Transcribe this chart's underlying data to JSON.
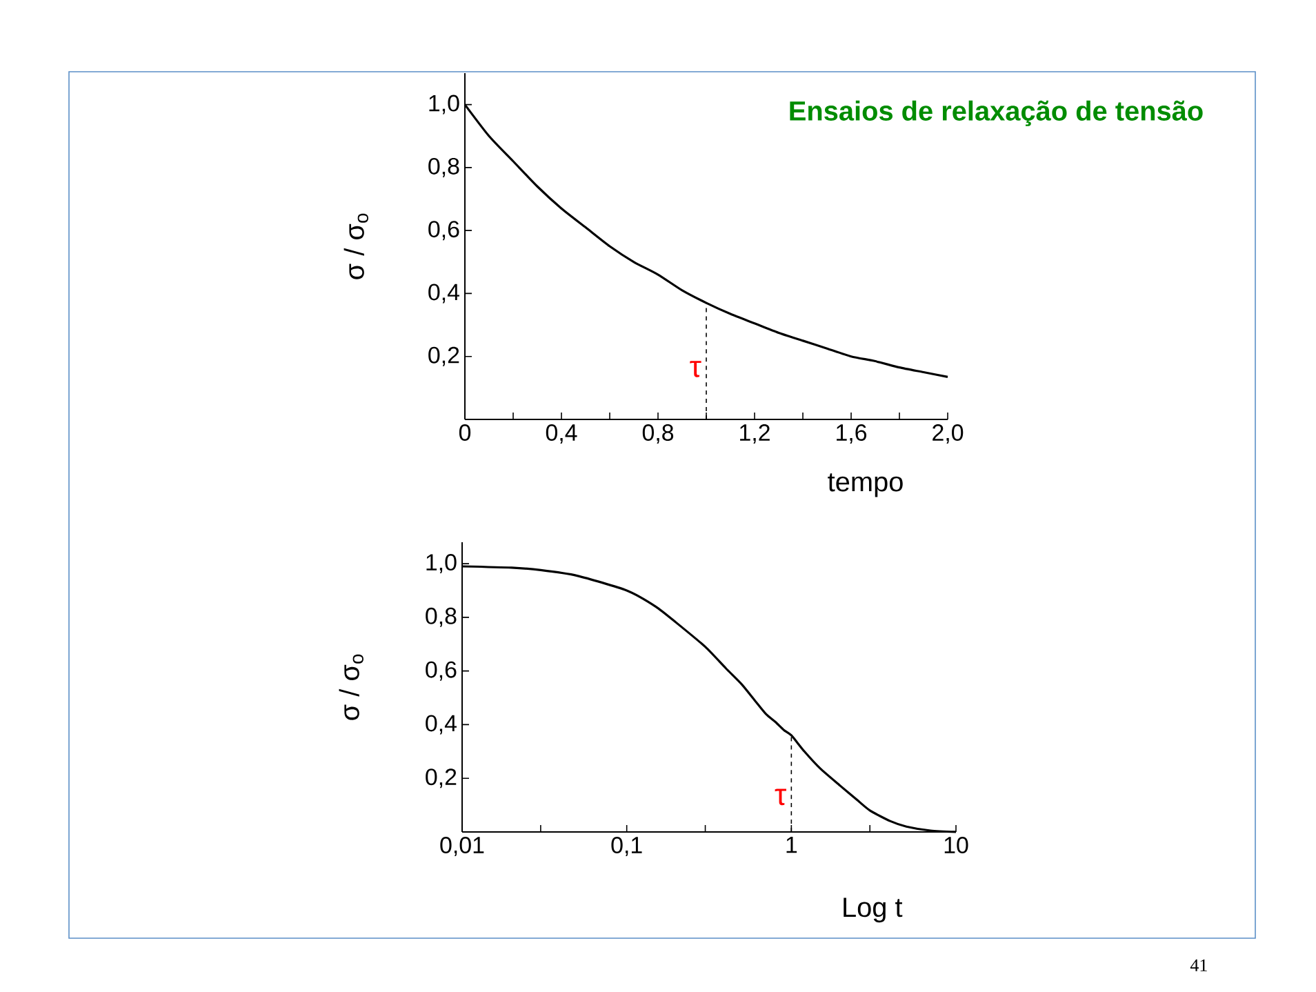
{
  "chart_data": [
    {
      "type": "line",
      "title": "Ensaios de relaxação de tensão",
      "xlabel": "tempo",
      "ylabel": "σ / σ$_{o}$",
      "xlim": [
        0,
        2.0
      ],
      "ylim": [
        0,
        1.1
      ],
      "xticks": [
        {
          "value": 0,
          "label": "0"
        },
        {
          "value": 0.2,
          "label": null
        },
        {
          "value": 0.4,
          "label": "0,4"
        },
        {
          "value": 0.6,
          "label": null
        },
        {
          "value": 0.8,
          "label": "0,8"
        },
        {
          "value": 1.0,
          "label": null
        },
        {
          "value": 1.2,
          "label": "1,2"
        },
        {
          "value": 1.4,
          "label": null
        },
        {
          "value": 1.6,
          "label": "1,6"
        },
        {
          "value": 1.8,
          "label": null
        },
        {
          "value": 2.0,
          "label": "2,0"
        }
      ],
      "yticks": [
        {
          "value": 0.2,
          "label": "0,2"
        },
        {
          "value": 0.4,
          "label": "0,4"
        },
        {
          "value": 0.6,
          "label": "0,6"
        },
        {
          "value": 0.8,
          "label": "0,8"
        },
        {
          "value": 1.0,
          "label": "1,0"
        }
      ],
      "series": [
        {
          "color": "#000000",
          "x": [
            0,
            0.1,
            0.2,
            0.3,
            0.4,
            0.5,
            0.6,
            0.7,
            0.8,
            0.9,
            1.0,
            1.1,
            1.2,
            1.3,
            1.4,
            1.5,
            1.6,
            1.7,
            1.8,
            1.9,
            2.0
          ],
          "values": [
            1.0,
            0.9,
            0.82,
            0.74,
            0.67,
            0.61,
            0.55,
            0.5,
            0.46,
            0.41,
            0.37,
            0.335,
            0.305,
            0.275,
            0.25,
            0.225,
            0.2,
            0.185,
            0.165,
            0.15,
            0.135
          ]
        },
        {
          "color": "#000000",
          "line_style": "dashed",
          "x": [
            1.0,
            1.0
          ],
          "values": [
            0,
            0.37
          ]
        }
      ],
      "annotations": [
        {
          "text": "τ",
          "x": 1.0,
          "y": 0.16
        }
      ]
    },
    {
      "type": "line",
      "xlabel": "Log t",
      "ylabel": "σ / σ$_{o}$",
      "log": "x",
      "xlim": [
        0.01,
        10
      ],
      "ylim": [
        0,
        1.08
      ],
      "xticks": [
        {
          "value": 0.01,
          "label": "0,01"
        },
        {
          "value": 0.03,
          "label": null
        },
        {
          "value": 0.1,
          "label": "0,1"
        },
        {
          "value": 0.3,
          "label": null
        },
        {
          "value": 1,
          "label": "1"
        },
        {
          "value": 3,
          "label": null
        },
        {
          "value": 10,
          "label": "10"
        }
      ],
      "yticks": [
        {
          "value": 0.2,
          "label": "0,2"
        },
        {
          "value": 0.4,
          "label": "0,4"
        },
        {
          "value": 0.6,
          "label": "0,6"
        },
        {
          "value": 0.8,
          "label": "0,8"
        },
        {
          "value": 1.0,
          "label": "1,0"
        }
      ],
      "series": [
        {
          "color": "#000000",
          "x": [
            0.01,
            0.02,
            0.03,
            0.05,
            0.1,
            0.15,
            0.2,
            0.3,
            0.4,
            0.5,
            0.6,
            0.7,
            0.8,
            0.9,
            1.0,
            1.2,
            1.5,
            2,
            2.5,
            3,
            4,
            5,
            7,
            10
          ],
          "values": [
            0.99,
            0.985,
            0.976,
            0.955,
            0.9,
            0.84,
            0.78,
            0.69,
            0.61,
            0.55,
            0.49,
            0.44,
            0.41,
            0.38,
            0.36,
            0.3,
            0.236,
            0.17,
            0.12,
            0.08,
            0.04,
            0.02,
            0.005,
            0.0
          ]
        },
        {
          "color": "#000000",
          "line_style": "dashed",
          "x": [
            1.0,
            1.0
          ],
          "values": [
            0,
            0.36
          ]
        }
      ],
      "annotations": [
        {
          "text": "τ",
          "x": 1.0,
          "y": 0.13
        },
        "41"
      ]
    }
  ]
}
